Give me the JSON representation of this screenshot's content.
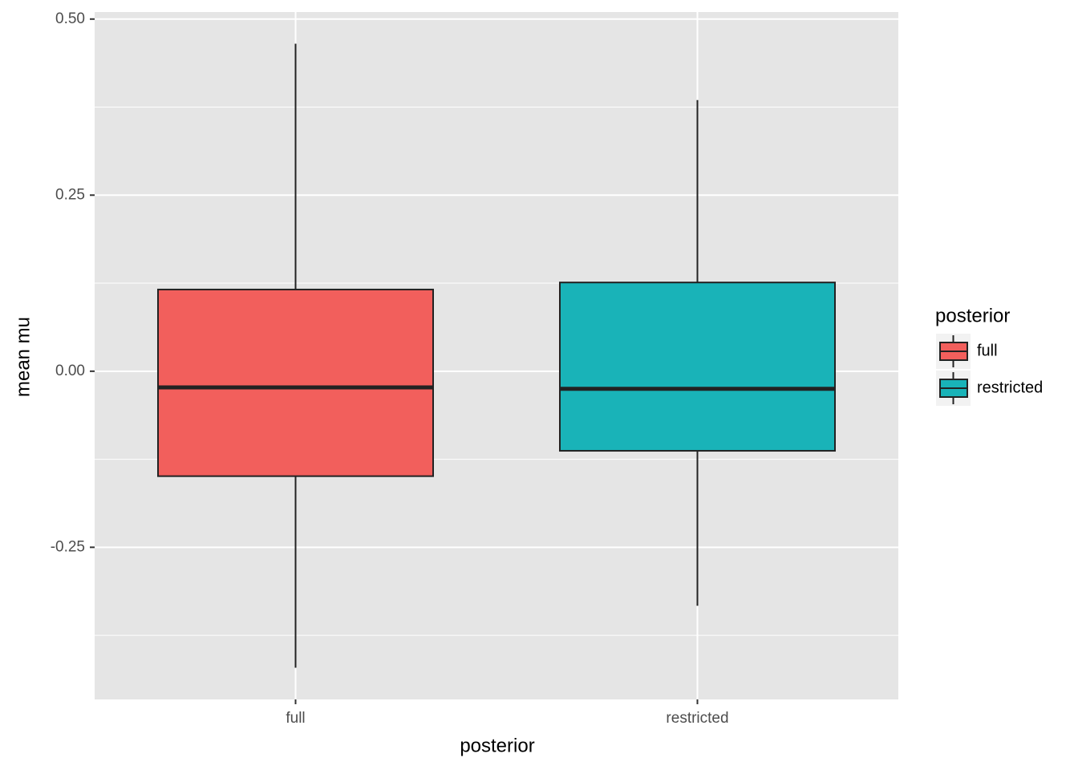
{
  "chart_data": {
    "type": "boxplot",
    "xlabel": "posterior",
    "ylabel": "mean mu",
    "legend_title": "posterior",
    "categories": [
      "full",
      "restricted"
    ],
    "colors": [
      "#f25f5c",
      "#19b3b8"
    ],
    "whisker_low": [
      -0.421,
      -0.333
    ],
    "q1": [
      -0.149,
      -0.113
    ],
    "median": [
      -0.023,
      -0.025
    ],
    "q3": [
      0.116,
      0.126
    ],
    "whisker_high": [
      0.465,
      0.385
    ],
    "ylim": [
      -0.466,
      0.51
    ],
    "yticks": [
      {
        "value": -0.25,
        "label": "-0.25"
      },
      {
        "value": 0,
        "label": "0.00"
      },
      {
        "value": 0.25,
        "label": "0.25"
      },
      {
        "value": 0.5,
        "label": "0.50"
      }
    ],
    "minor_yticks": [
      -0.375,
      -0.125,
      0.125,
      0.375
    ],
    "grid": true,
    "legend": "right"
  }
}
